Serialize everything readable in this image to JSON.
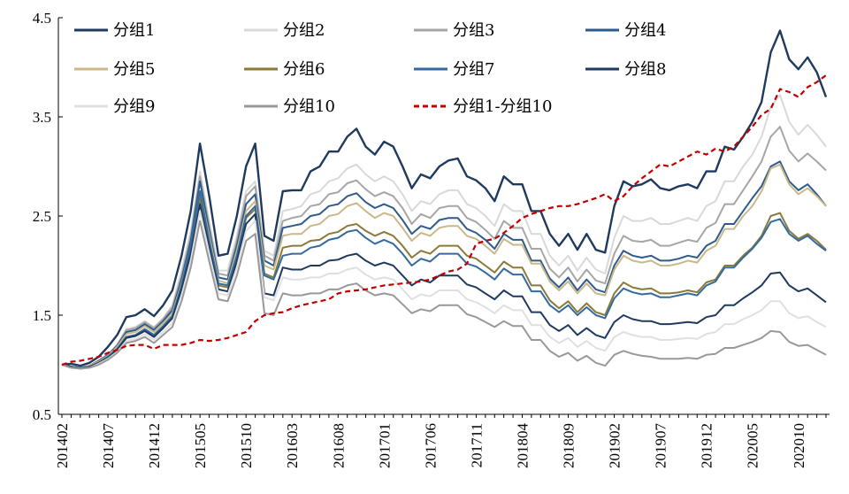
{
  "chart_data": {
    "type": "line",
    "title": "",
    "xlabel": "",
    "ylabel": "",
    "ylim": [
      0.5,
      4.5
    ],
    "yticks": [
      "0.5",
      "1.5",
      "2.5",
      "3.5",
      "4.5"
    ],
    "ytick_values": [
      0.5,
      1.5,
      2.5,
      3.5,
      4.5
    ],
    "xtick_labels": [
      "201402",
      "201407",
      "201412",
      "201505",
      "201510",
      "201603",
      "201608",
      "201701",
      "201706",
      "201711",
      "201804",
      "201809",
      "201902",
      "201907",
      "201912",
      "202005",
      "202010"
    ],
    "grid": false,
    "legend_position": "top",
    "x": [
      "201402",
      "201403",
      "201404",
      "201405",
      "201406",
      "201407",
      "201408",
      "201409",
      "201410",
      "201411",
      "201412",
      "201501",
      "201502",
      "201503",
      "201504",
      "201505",
      "201506",
      "201507",
      "201508",
      "201509",
      "201510",
      "201511",
      "201512",
      "201601",
      "201602",
      "201603",
      "201604",
      "201605",
      "201606",
      "201607",
      "201608",
      "201609",
      "201610",
      "201611",
      "201612",
      "201701",
      "201702",
      "201703",
      "201704",
      "201705",
      "201706",
      "201707",
      "201708",
      "201709",
      "201710",
      "201711",
      "201712",
      "201801",
      "201802",
      "201803",
      "201804",
      "201805",
      "201806",
      "201807",
      "201808",
      "201809",
      "201810",
      "201811",
      "201812",
      "201901",
      "201902",
      "201903",
      "201904",
      "201905",
      "201906",
      "201907",
      "201908",
      "201909",
      "201910",
      "201911",
      "201912",
      "202001",
      "202002",
      "202003",
      "202004",
      "202005",
      "202006",
      "202007",
      "202008",
      "202009",
      "202010",
      "202011",
      "202012",
      "202101"
    ],
    "series": [
      {
        "name": "分组1",
        "color": "#1f3a5f",
        "dash": "",
        "width": 2.4,
        "values": [
          1.0,
          1.01,
          0.99,
          1.02,
          1.08,
          1.18,
          1.3,
          1.48,
          1.5,
          1.56,
          1.49,
          1.6,
          1.75,
          2.1,
          2.55,
          3.23,
          2.7,
          2.1,
          2.12,
          2.5,
          3.0,
          3.23,
          2.3,
          2.25,
          2.75,
          2.76,
          2.76,
          2.95,
          3.0,
          3.15,
          3.15,
          3.3,
          3.38,
          3.2,
          3.12,
          3.25,
          3.2,
          3.0,
          2.78,
          2.92,
          2.88,
          3.0,
          3.06,
          3.08,
          2.9,
          2.86,
          2.78,
          2.65,
          2.9,
          2.82,
          2.82,
          2.55,
          2.55,
          2.32,
          2.2,
          2.32,
          2.16,
          2.32,
          2.16,
          2.13,
          2.6,
          2.85,
          2.8,
          2.82,
          2.87,
          2.78,
          2.76,
          2.8,
          2.82,
          2.78,
          2.95,
          2.95,
          3.2,
          3.17,
          3.3,
          3.45,
          3.65,
          4.15,
          4.37,
          4.08,
          3.98,
          4.1,
          3.95,
          3.7
        ]
      },
      {
        "name": "分组2",
        "color": "#d9d9d9",
        "dash": "",
        "width": 2.0,
        "values": [
          1.0,
          0.98,
          0.97,
          0.99,
          1.04,
          1.1,
          1.2,
          1.36,
          1.38,
          1.44,
          1.38,
          1.47,
          1.6,
          1.95,
          2.35,
          2.95,
          2.45,
          1.95,
          1.95,
          2.3,
          2.75,
          2.85,
          2.15,
          2.1,
          2.55,
          2.57,
          2.6,
          2.72,
          2.75,
          2.85,
          2.88,
          2.98,
          3.02,
          2.92,
          2.85,
          2.9,
          2.85,
          2.72,
          2.55,
          2.65,
          2.62,
          2.72,
          2.76,
          2.76,
          2.62,
          2.58,
          2.5,
          2.4,
          2.62,
          2.55,
          2.55,
          2.32,
          2.32,
          2.1,
          2.0,
          2.1,
          1.95,
          2.08,
          1.96,
          1.92,
          2.28,
          2.5,
          2.45,
          2.45,
          2.48,
          2.42,
          2.42,
          2.45,
          2.48,
          2.45,
          2.6,
          2.65,
          2.85,
          2.85,
          3.0,
          3.12,
          3.3,
          3.6,
          3.72,
          3.45,
          3.32,
          3.42,
          3.32,
          3.2
        ]
      },
      {
        "name": "分组3",
        "color": "#a6a6a6",
        "dash": "",
        "width": 2.0,
        "values": [
          1.0,
          0.98,
          0.97,
          0.99,
          1.04,
          1.1,
          1.2,
          1.35,
          1.37,
          1.43,
          1.37,
          1.46,
          1.58,
          1.9,
          2.3,
          2.9,
          2.4,
          1.92,
          1.9,
          2.25,
          2.7,
          2.8,
          2.1,
          2.05,
          2.45,
          2.48,
          2.5,
          2.6,
          2.62,
          2.72,
          2.74,
          2.83,
          2.86,
          2.77,
          2.7,
          2.74,
          2.7,
          2.58,
          2.42,
          2.52,
          2.48,
          2.58,
          2.6,
          2.6,
          2.48,
          2.44,
          2.36,
          2.27,
          2.45,
          2.38,
          2.38,
          2.17,
          2.17,
          1.97,
          1.88,
          1.98,
          1.84,
          1.96,
          1.85,
          1.82,
          2.12,
          2.3,
          2.25,
          2.24,
          2.26,
          2.2,
          2.2,
          2.23,
          2.26,
          2.24,
          2.38,
          2.43,
          2.62,
          2.62,
          2.76,
          2.9,
          3.05,
          3.3,
          3.4,
          3.16,
          3.05,
          3.13,
          3.05,
          2.96
        ]
      },
      {
        "name": "分组4",
        "color": "#2e5a8c",
        "dash": "",
        "width": 2.0,
        "values": [
          1.0,
          0.98,
          0.97,
          0.99,
          1.04,
          1.1,
          1.19,
          1.33,
          1.35,
          1.41,
          1.35,
          1.44,
          1.55,
          1.86,
          2.25,
          2.85,
          2.35,
          1.88,
          1.86,
          2.2,
          2.62,
          2.72,
          2.05,
          2.0,
          2.38,
          2.4,
          2.42,
          2.5,
          2.52,
          2.6,
          2.62,
          2.7,
          2.73,
          2.64,
          2.58,
          2.62,
          2.58,
          2.46,
          2.32,
          2.4,
          2.37,
          2.46,
          2.48,
          2.48,
          2.37,
          2.33,
          2.26,
          2.17,
          2.32,
          2.26,
          2.26,
          2.05,
          2.05,
          1.87,
          1.78,
          1.88,
          1.75,
          1.86,
          1.76,
          1.73,
          2.0,
          2.15,
          2.1,
          2.08,
          2.1,
          2.05,
          2.05,
          2.07,
          2.1,
          2.08,
          2.2,
          2.25,
          2.42,
          2.42,
          2.55,
          2.68,
          2.8,
          3.0,
          3.05,
          2.85,
          2.76,
          2.82,
          2.72,
          2.6
        ]
      },
      {
        "name": "分组5",
        "color": "#c9b98a",
        "dash": "",
        "width": 2.0,
        "values": [
          1.0,
          0.98,
          0.97,
          0.99,
          1.03,
          1.09,
          1.18,
          1.31,
          1.33,
          1.39,
          1.33,
          1.42,
          1.52,
          1.82,
          2.2,
          2.75,
          2.3,
          1.85,
          1.82,
          2.15,
          2.55,
          2.65,
          2.0,
          1.96,
          2.3,
          2.32,
          2.32,
          2.4,
          2.42,
          2.5,
          2.52,
          2.6,
          2.63,
          2.55,
          2.48,
          2.53,
          2.5,
          2.38,
          2.25,
          2.33,
          2.3,
          2.38,
          2.4,
          2.4,
          2.3,
          2.27,
          2.2,
          2.12,
          2.27,
          2.21,
          2.21,
          2.02,
          2.02,
          1.84,
          1.75,
          1.84,
          1.72,
          1.82,
          1.72,
          1.7,
          1.96,
          2.1,
          2.05,
          2.03,
          2.05,
          2.0,
          2.0,
          2.02,
          2.05,
          2.03,
          2.15,
          2.2,
          2.37,
          2.37,
          2.5,
          2.6,
          2.75,
          2.98,
          3.02,
          2.82,
          2.72,
          2.78,
          2.7,
          2.6
        ]
      },
      {
        "name": "分组6",
        "color": "#8a7a3a",
        "dash": "",
        "width": 2.0,
        "values": [
          1.0,
          0.98,
          0.97,
          0.98,
          1.02,
          1.08,
          1.16,
          1.28,
          1.3,
          1.36,
          1.3,
          1.39,
          1.49,
          1.78,
          2.15,
          2.68,
          2.22,
          1.8,
          1.78,
          2.08,
          2.48,
          2.57,
          1.92,
          1.88,
          2.18,
          2.2,
          2.2,
          2.25,
          2.26,
          2.32,
          2.34,
          2.4,
          2.42,
          2.35,
          2.3,
          2.34,
          2.3,
          2.2,
          2.08,
          2.15,
          2.12,
          2.2,
          2.2,
          2.2,
          2.1,
          2.07,
          2.0,
          1.93,
          2.04,
          1.98,
          1.98,
          1.8,
          1.8,
          1.65,
          1.57,
          1.64,
          1.53,
          1.62,
          1.53,
          1.5,
          1.72,
          1.83,
          1.78,
          1.76,
          1.77,
          1.72,
          1.72,
          1.73,
          1.75,
          1.73,
          1.83,
          1.86,
          2.0,
          2.0,
          2.1,
          2.18,
          2.3,
          2.5,
          2.53,
          2.35,
          2.27,
          2.32,
          2.25,
          2.16
        ]
      },
      {
        "name": "分组7",
        "color": "#336b9e",
        "dash": "",
        "width": 2.0,
        "values": [
          1.0,
          0.98,
          0.97,
          0.98,
          1.02,
          1.08,
          1.16,
          1.28,
          1.3,
          1.36,
          1.3,
          1.39,
          1.49,
          1.8,
          2.2,
          2.75,
          2.25,
          1.82,
          1.8,
          2.1,
          2.5,
          2.6,
          1.9,
          1.86,
          2.1,
          2.12,
          2.12,
          2.18,
          2.2,
          2.26,
          2.28,
          2.34,
          2.36,
          2.28,
          2.22,
          2.26,
          2.22,
          2.12,
          2.0,
          2.07,
          2.04,
          2.12,
          2.12,
          2.12,
          2.02,
          1.99,
          1.93,
          1.86,
          1.97,
          1.91,
          1.91,
          1.74,
          1.74,
          1.6,
          1.53,
          1.6,
          1.5,
          1.58,
          1.5,
          1.47,
          1.67,
          1.77,
          1.73,
          1.71,
          1.72,
          1.68,
          1.68,
          1.7,
          1.72,
          1.7,
          1.8,
          1.84,
          1.98,
          1.98,
          2.08,
          2.17,
          2.28,
          2.44,
          2.47,
          2.32,
          2.25,
          2.3,
          2.22,
          2.15
        ]
      },
      {
        "name": "分组8",
        "color": "#1f3a5f",
        "dash": "",
        "width": 2.0,
        "values": [
          1.0,
          0.98,
          0.96,
          0.98,
          1.02,
          1.07,
          1.15,
          1.27,
          1.29,
          1.34,
          1.28,
          1.37,
          1.47,
          1.76,
          2.12,
          2.62,
          2.18,
          1.76,
          1.74,
          2.04,
          2.42,
          2.52,
          1.72,
          1.7,
          1.98,
          1.96,
          1.96,
          2.0,
          2.0,
          2.05,
          2.06,
          2.1,
          2.12,
          2.05,
          2.0,
          2.03,
          2.0,
          1.9,
          1.8,
          1.86,
          1.83,
          1.9,
          1.9,
          1.9,
          1.81,
          1.78,
          1.72,
          1.66,
          1.75,
          1.69,
          1.69,
          1.53,
          1.53,
          1.4,
          1.34,
          1.4,
          1.3,
          1.37,
          1.3,
          1.27,
          1.43,
          1.5,
          1.46,
          1.44,
          1.44,
          1.41,
          1.41,
          1.42,
          1.43,
          1.42,
          1.48,
          1.5,
          1.6,
          1.6,
          1.67,
          1.73,
          1.8,
          1.92,
          1.93,
          1.8,
          1.74,
          1.77,
          1.7,
          1.63
        ]
      },
      {
        "name": "分组9",
        "color": "#e0e0e0",
        "dash": "",
        "width": 2.0,
        "values": [
          1.0,
          0.97,
          0.96,
          0.97,
          1.01,
          1.06,
          1.13,
          1.24,
          1.26,
          1.31,
          1.25,
          1.33,
          1.42,
          1.7,
          2.05,
          2.55,
          2.12,
          1.72,
          1.7,
          1.98,
          2.35,
          2.45,
          1.68,
          1.65,
          1.88,
          1.86,
          1.86,
          1.88,
          1.88,
          1.92,
          1.92,
          1.96,
          1.98,
          1.91,
          1.86,
          1.88,
          1.86,
          1.76,
          1.66,
          1.71,
          1.69,
          1.75,
          1.75,
          1.75,
          1.66,
          1.63,
          1.58,
          1.52,
          1.6,
          1.55,
          1.55,
          1.4,
          1.4,
          1.28,
          1.22,
          1.27,
          1.18,
          1.24,
          1.17,
          1.14,
          1.28,
          1.33,
          1.3,
          1.28,
          1.28,
          1.25,
          1.25,
          1.26,
          1.27,
          1.26,
          1.31,
          1.33,
          1.41,
          1.41,
          1.46,
          1.5,
          1.55,
          1.64,
          1.64,
          1.52,
          1.47,
          1.49,
          1.43,
          1.38
        ]
      },
      {
        "name": "分组10",
        "color": "#999999",
        "dash": "",
        "width": 2.0,
        "values": [
          1.0,
          0.97,
          0.96,
          0.97,
          1.0,
          1.05,
          1.12,
          1.22,
          1.24,
          1.28,
          1.22,
          1.3,
          1.38,
          1.64,
          1.98,
          2.45,
          2.04,
          1.66,
          1.64,
          1.9,
          2.25,
          2.32,
          1.52,
          1.5,
          1.72,
          1.7,
          1.7,
          1.72,
          1.72,
          1.76,
          1.76,
          1.8,
          1.82,
          1.75,
          1.7,
          1.72,
          1.7,
          1.61,
          1.52,
          1.56,
          1.54,
          1.6,
          1.6,
          1.6,
          1.51,
          1.48,
          1.43,
          1.38,
          1.44,
          1.39,
          1.39,
          1.25,
          1.25,
          1.14,
          1.08,
          1.12,
          1.04,
          1.09,
          1.02,
          0.99,
          1.1,
          1.14,
          1.11,
          1.09,
          1.08,
          1.06,
          1.06,
          1.06,
          1.07,
          1.06,
          1.1,
          1.11,
          1.17,
          1.17,
          1.2,
          1.23,
          1.27,
          1.34,
          1.33,
          1.23,
          1.19,
          1.2,
          1.15,
          1.1
        ]
      },
      {
        "name": "分组1-分组10",
        "color": "#c00000",
        "dash": "6,4",
        "width": 2.2,
        "values": [
          1.0,
          1.03,
          1.04,
          1.06,
          1.08,
          1.12,
          1.15,
          1.19,
          1.2,
          1.2,
          1.16,
          1.2,
          1.2,
          1.2,
          1.22,
          1.25,
          1.24,
          1.25,
          1.27,
          1.3,
          1.33,
          1.44,
          1.5,
          1.52,
          1.53,
          1.57,
          1.6,
          1.62,
          1.64,
          1.66,
          1.72,
          1.74,
          1.75,
          1.76,
          1.78,
          1.8,
          1.81,
          1.82,
          1.83,
          1.84,
          1.86,
          1.9,
          1.94,
          1.96,
          2.02,
          2.22,
          2.25,
          2.27,
          2.33,
          2.4,
          2.48,
          2.52,
          2.55,
          2.58,
          2.6,
          2.6,
          2.62,
          2.65,
          2.68,
          2.72,
          2.65,
          2.7,
          2.8,
          2.88,
          2.95,
          3.02,
          3.0,
          3.05,
          3.1,
          3.15,
          3.12,
          3.18,
          3.15,
          3.2,
          3.3,
          3.4,
          3.52,
          3.58,
          3.78,
          3.75,
          3.7,
          3.8,
          3.85,
          3.92
        ]
      }
    ]
  }
}
